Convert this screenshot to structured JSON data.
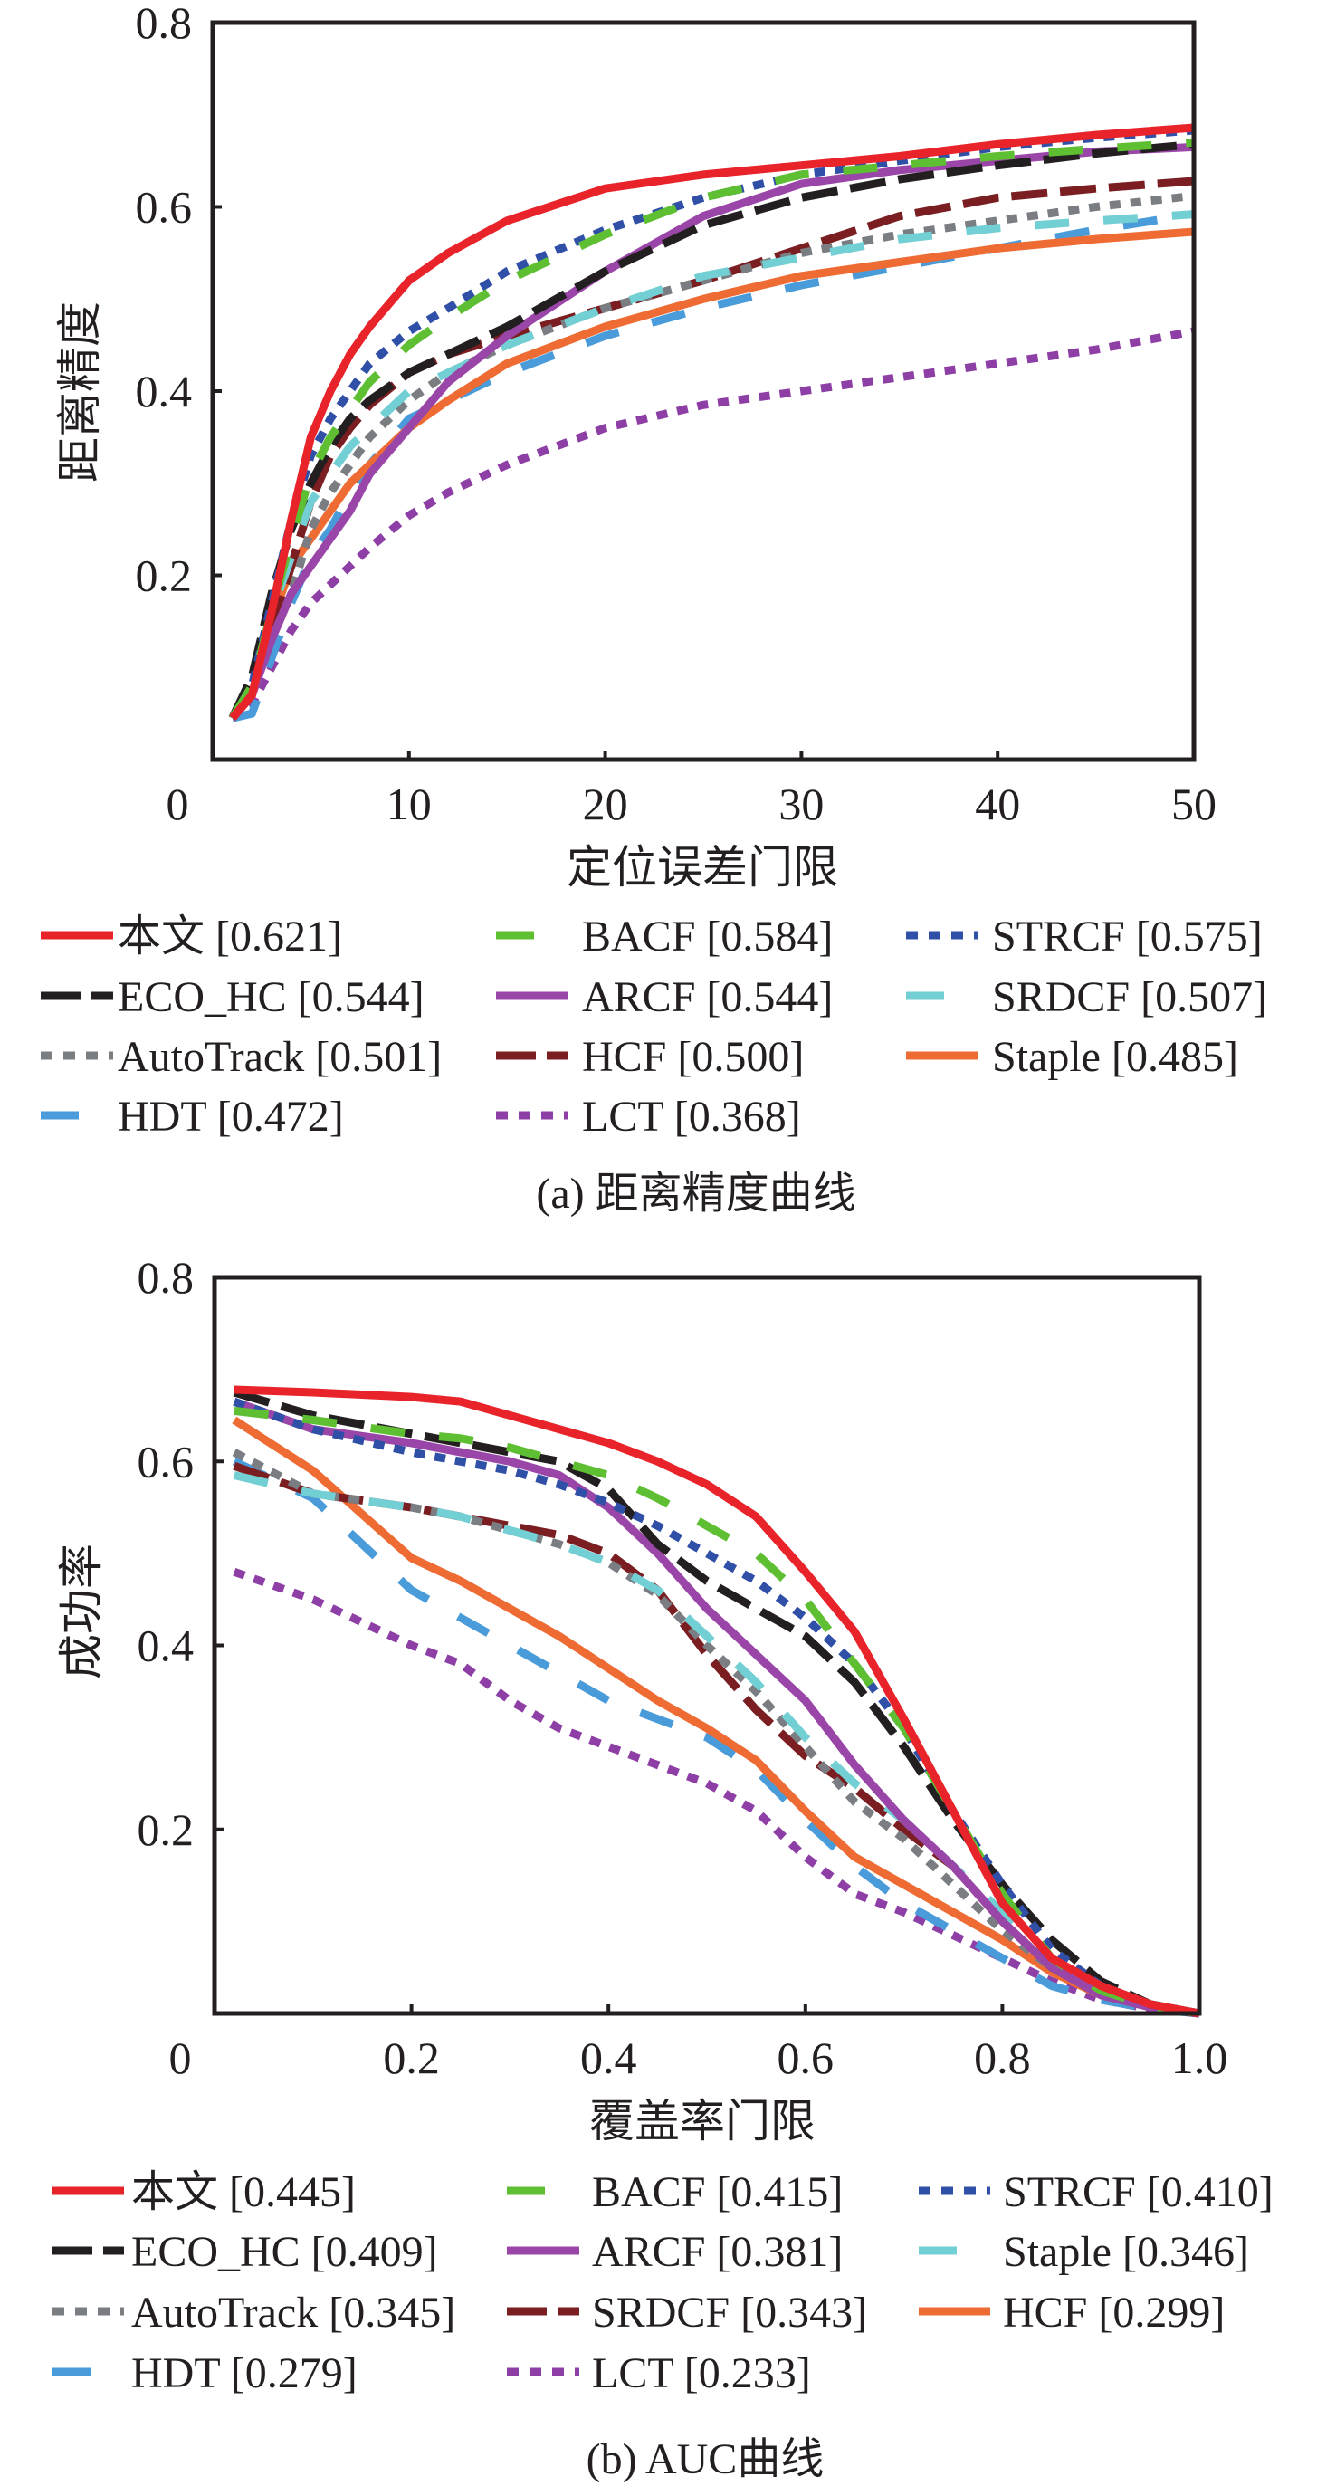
{
  "chart_data": [
    {
      "type": "line",
      "title": "",
      "caption": "(a) 距离精度曲线",
      "xlabel": "定位误差门限",
      "ylabel": "距离精度",
      "xlim": [
        0,
        50
      ],
      "ylim": [
        0,
        0.8
      ],
      "xticks": [
        0,
        10,
        20,
        30,
        40,
        50
      ],
      "xtick_labels": [
        "0",
        "10",
        "20",
        "30",
        "40",
        "50"
      ],
      "yticks": [
        0.2,
        0.4,
        0.6,
        0.8
      ],
      "ytick_labels": [
        "0.2",
        "0.4",
        "0.6",
        "0.8"
      ],
      "grid": false,
      "legend_position": "bottom",
      "x": [
        1,
        2,
        3,
        4,
        5,
        6,
        7,
        8,
        10,
        12,
        15,
        20,
        25,
        30,
        35,
        40,
        45,
        50
      ],
      "series": [
        {
          "name": "本文",
          "score": "0.621",
          "label": "本文 [0.621]",
          "color": "#E8232A",
          "style": "solid",
          "values": [
            0.045,
            0.07,
            0.16,
            0.26,
            0.35,
            0.4,
            0.44,
            0.47,
            0.52,
            0.55,
            0.585,
            0.62,
            0.635,
            0.645,
            0.655,
            0.668,
            0.678,
            0.686
          ]
        },
        {
          "name": "BACF",
          "score": "0.584",
          "label": "BACF [0.584]",
          "color": "#5FBF33",
          "style": "longdash",
          "values": [
            0.045,
            0.08,
            0.16,
            0.24,
            0.31,
            0.35,
            0.38,
            0.41,
            0.45,
            0.48,
            0.52,
            0.57,
            0.61,
            0.635,
            0.645,
            0.655,
            0.663,
            0.67
          ]
        },
        {
          "name": "STRCF",
          "score": "0.575",
          "label": "STRCF [0.575]",
          "color": "#3050A8",
          "style": "dot",
          "values": [
            0.045,
            0.08,
            0.17,
            0.26,
            0.33,
            0.37,
            0.4,
            0.43,
            0.465,
            0.49,
            0.53,
            0.575,
            0.61,
            0.635,
            0.65,
            0.665,
            0.675,
            0.683
          ]
        },
        {
          "name": "ECO_HC",
          "score": "0.544",
          "label": "ECO_HC [0.544]",
          "color": "#231F20",
          "style": "dash",
          "values": [
            0.045,
            0.09,
            0.18,
            0.25,
            0.3,
            0.34,
            0.37,
            0.39,
            0.42,
            0.44,
            0.47,
            0.53,
            0.58,
            0.61,
            0.63,
            0.645,
            0.658,
            0.668
          ]
        },
        {
          "name": "ARCF",
          "score": "0.544",
          "label": "ARCF [0.544]",
          "color": "#9A46A8",
          "style": "solid",
          "values": [
            0.045,
            0.07,
            0.13,
            0.18,
            0.21,
            0.24,
            0.27,
            0.31,
            0.36,
            0.41,
            0.46,
            0.53,
            0.59,
            0.625,
            0.64,
            0.65,
            0.66,
            0.665
          ]
        },
        {
          "name": "SRDCF",
          "score": "0.507",
          "label": "SRDCF [0.507]",
          "color": "#72CFD3",
          "style": "longdash",
          "values": [
            0.045,
            0.08,
            0.16,
            0.22,
            0.28,
            0.31,
            0.34,
            0.36,
            0.4,
            0.42,
            0.45,
            0.49,
            0.525,
            0.545,
            0.565,
            0.577,
            0.585,
            0.592
          ]
        },
        {
          "name": "AutoTrack",
          "score": "0.501",
          "label": "AutoTrack [0.501]",
          "color": "#7A7D82",
          "style": "dot",
          "values": [
            0.045,
            0.07,
            0.13,
            0.18,
            0.25,
            0.29,
            0.32,
            0.35,
            0.39,
            0.42,
            0.45,
            0.49,
            0.52,
            0.55,
            0.57,
            0.585,
            0.6,
            0.612
          ]
        },
        {
          "name": "HCF",
          "score": "0.500",
          "label": "HCF [0.500]",
          "color": "#7A1E22",
          "style": "dash",
          "values": [
            0.045,
            0.07,
            0.14,
            0.21,
            0.28,
            0.33,
            0.36,
            0.385,
            0.42,
            0.44,
            0.46,
            0.49,
            0.52,
            0.555,
            0.59,
            0.61,
            0.62,
            0.628
          ]
        },
        {
          "name": "Staple",
          "score": "0.485",
          "label": "Staple [0.485]",
          "color": "#EE6B33",
          "style": "solid",
          "values": [
            0.045,
            0.07,
            0.15,
            0.21,
            0.24,
            0.27,
            0.3,
            0.32,
            0.36,
            0.39,
            0.43,
            0.47,
            0.5,
            0.525,
            0.54,
            0.555,
            0.565,
            0.573
          ]
        },
        {
          "name": "HDT",
          "score": "0.472",
          "label": "HDT [0.472]",
          "color": "#4A9BD9",
          "style": "longdash",
          "values": [
            0.045,
            0.05,
            0.11,
            0.17,
            0.22,
            0.25,
            0.29,
            0.32,
            0.37,
            0.39,
            0.42,
            0.46,
            0.49,
            0.515,
            0.535,
            0.555,
            0.575,
            0.592
          ]
        },
        {
          "name": "LCT",
          "score": "0.368",
          "label": "LCT [0.368]",
          "color": "#8E3FA5",
          "style": "dot",
          "values": [
            0.045,
            0.06,
            0.1,
            0.14,
            0.17,
            0.19,
            0.21,
            0.23,
            0.265,
            0.29,
            0.32,
            0.36,
            0.385,
            0.4,
            0.415,
            0.43,
            0.445,
            0.465
          ]
        }
      ],
      "legend_order": [
        [
          "本文",
          "ECO_HC",
          "AutoTrack",
          "HDT"
        ],
        [
          "BACF",
          "ARCF",
          "HCF",
          "LCT"
        ],
        [
          "STRCF",
          "SRDCF",
          "Staple"
        ]
      ]
    },
    {
      "type": "line",
      "title": "",
      "caption": "(b) AUC曲线",
      "xlabel": "覆盖率门限",
      "ylabel": "成功率",
      "xlim": [
        0,
        1.0
      ],
      "ylim": [
        0,
        0.8
      ],
      "xticks": [
        0,
        0.2,
        0.4,
        0.6,
        0.8,
        1.0
      ],
      "xtick_labels": [
        "0",
        "0.2",
        "0.4",
        "0.6",
        "0.8",
        "1.0"
      ],
      "yticks": [
        0.2,
        0.4,
        0.6,
        0.8
      ],
      "ytick_labels": [
        "0.2",
        "0.4",
        "0.6",
        "0.8"
      ],
      "grid": false,
      "legend_position": "bottom",
      "x": [
        0.02,
        0.1,
        0.2,
        0.25,
        0.3,
        0.35,
        0.4,
        0.45,
        0.5,
        0.55,
        0.6,
        0.65,
        0.7,
        0.75,
        0.8,
        0.85,
        0.9,
        0.95,
        1.0
      ],
      "series": [
        {
          "name": "本文",
          "score": "0.445",
          "label": "本文 [0.445]",
          "color": "#E8232A",
          "style": "solid",
          "values": [
            0.678,
            0.675,
            0.67,
            0.665,
            0.65,
            0.635,
            0.62,
            0.6,
            0.575,
            0.54,
            0.48,
            0.415,
            0.32,
            0.22,
            0.12,
            0.06,
            0.03,
            0.01,
            0.0
          ]
        },
        {
          "name": "BACF",
          "score": "0.415",
          "label": "BACF [0.415]",
          "color": "#5FBF33",
          "style": "longdash",
          "values": [
            0.655,
            0.645,
            0.63,
            0.625,
            0.615,
            0.6,
            0.585,
            0.56,
            0.53,
            0.5,
            0.45,
            0.38,
            0.31,
            0.22,
            0.13,
            0.06,
            0.025,
            0.008,
            0.0
          ]
        },
        {
          "name": "STRCF",
          "score": "0.410",
          "label": "STRCF [0.410]",
          "color": "#3050A8",
          "style": "dot",
          "values": [
            0.665,
            0.635,
            0.61,
            0.6,
            0.59,
            0.575,
            0.555,
            0.53,
            0.5,
            0.47,
            0.43,
            0.38,
            0.31,
            0.22,
            0.14,
            0.07,
            0.03,
            0.01,
            0.0
          ]
        },
        {
          "name": "ECO_HC",
          "score": "0.409",
          "label": "ECO_HC [0.409]",
          "color": "#231F20",
          "style": "dash",
          "values": [
            0.675,
            0.65,
            0.63,
            0.62,
            0.61,
            0.6,
            0.57,
            0.51,
            0.47,
            0.44,
            0.41,
            0.36,
            0.29,
            0.21,
            0.14,
            0.08,
            0.035,
            0.01,
            0.0
          ]
        },
        {
          "name": "ARCF",
          "score": "0.381",
          "label": "ARCF [0.381]",
          "color": "#9A46A8",
          "style": "solid",
          "values": [
            0.665,
            0.635,
            0.62,
            0.61,
            0.6,
            0.585,
            0.55,
            0.5,
            0.44,
            0.39,
            0.34,
            0.27,
            0.21,
            0.16,
            0.1,
            0.05,
            0.02,
            0.007,
            0.0
          ]
        },
        {
          "name": "Staple",
          "score": "0.346",
          "label": "Staple [0.346]",
          "color": "#72CFD3",
          "style": "longdash",
          "values": [
            0.585,
            0.565,
            0.55,
            0.54,
            0.525,
            0.51,
            0.49,
            0.46,
            0.41,
            0.36,
            0.3,
            0.25,
            0.21,
            0.16,
            0.11,
            0.06,
            0.025,
            0.008,
            0.0
          ]
        },
        {
          "name": "AutoTrack",
          "score": "0.345",
          "label": "AutoTrack [0.345]",
          "color": "#7A7D82",
          "style": "dot",
          "values": [
            0.61,
            0.565,
            0.55,
            0.54,
            0.525,
            0.51,
            0.49,
            0.455,
            0.4,
            0.35,
            0.29,
            0.23,
            0.19,
            0.14,
            0.09,
            0.05,
            0.02,
            0.007,
            0.0
          ]
        },
        {
          "name": "SRDCF",
          "score": "0.343",
          "label": "SRDCF [0.343]",
          "color": "#7A1E22",
          "style": "dash",
          "values": [
            0.595,
            0.565,
            0.55,
            0.54,
            0.53,
            0.52,
            0.5,
            0.46,
            0.39,
            0.33,
            0.28,
            0.245,
            0.2,
            0.16,
            0.1,
            0.05,
            0.02,
            0.007,
            0.0
          ]
        },
        {
          "name": "HCF",
          "score": "0.299",
          "label": "HCF [0.299]",
          "color": "#EE6B33",
          "style": "solid",
          "values": [
            0.645,
            0.59,
            0.495,
            0.47,
            0.44,
            0.41,
            0.375,
            0.34,
            0.31,
            0.275,
            0.22,
            0.17,
            0.14,
            0.11,
            0.08,
            0.045,
            0.02,
            0.007,
            0.0
          ]
        },
        {
          "name": "HDT",
          "score": "0.279",
          "label": "HDT [0.279]",
          "color": "#4A9BD9",
          "style": "longdash",
          "values": [
            0.6,
            0.56,
            0.46,
            0.43,
            0.4,
            0.37,
            0.34,
            0.32,
            0.3,
            0.265,
            0.21,
            0.16,
            0.12,
            0.09,
            0.06,
            0.03,
            0.015,
            0.005,
            0.0
          ]
        },
        {
          "name": "LCT",
          "score": "0.233",
          "label": "LCT [0.233]",
          "color": "#8E3FA5",
          "style": "dot",
          "values": [
            0.48,
            0.45,
            0.4,
            0.38,
            0.34,
            0.31,
            0.29,
            0.27,
            0.25,
            0.22,
            0.17,
            0.13,
            0.11,
            0.085,
            0.06,
            0.035,
            0.015,
            0.005,
            0.0
          ]
        }
      ],
      "legend_order": [
        [
          "本文",
          "ECO_HC",
          "AutoTrack",
          "HDT"
        ],
        [
          "BACF",
          "ARCF",
          "SRDCF",
          "LCT"
        ],
        [
          "STRCF",
          "Staple",
          "HCF"
        ]
      ]
    }
  ]
}
